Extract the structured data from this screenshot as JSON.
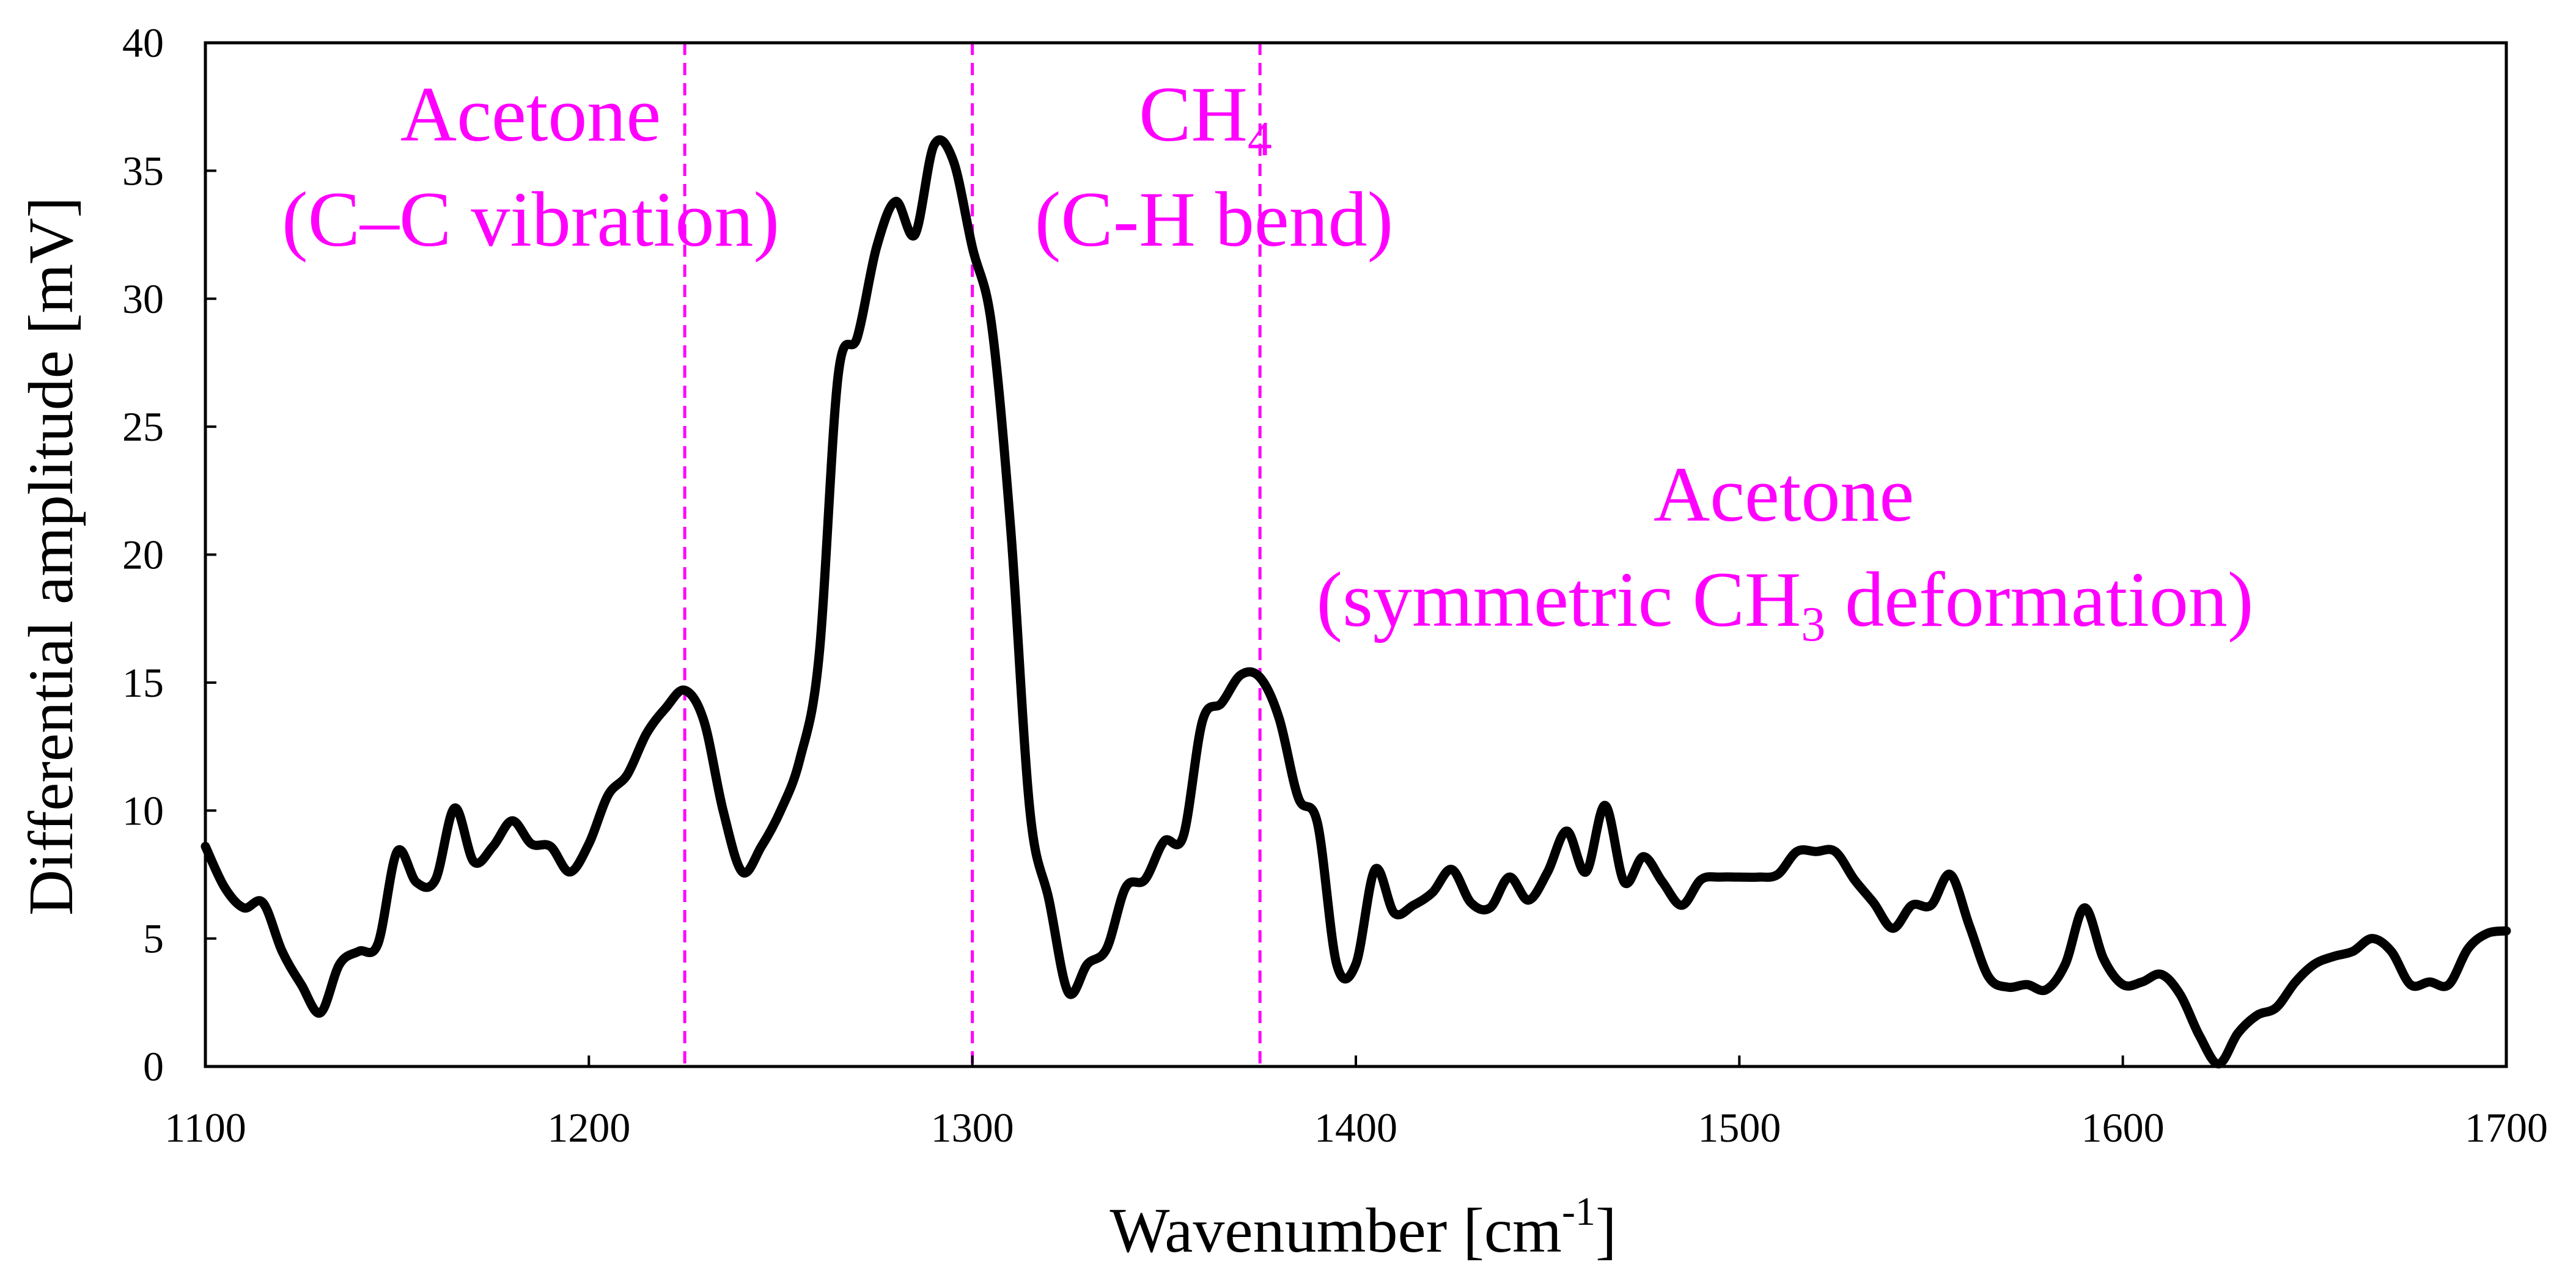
{
  "chart_data": {
    "type": "line",
    "title": "",
    "xlabel": "Wavenumber [cm",
    "xlabel_sup": "-1",
    "xlabel_end": "]",
    "ylabel": "Differential amplitude [mV]",
    "xlim": [
      1100,
      1700
    ],
    "ylim": [
      0,
      40
    ],
    "xticks": [
      1100,
      1200,
      1300,
      1400,
      1500,
      1600,
      1700
    ],
    "yticks": [
      0,
      5,
      10,
      15,
      20,
      25,
      30,
      35,
      40
    ],
    "grid": false,
    "line_color": "#000000",
    "annotation_color": "#ff00ff",
    "series": [
      {
        "name": "Differential amplitude",
        "x": [
          1100,
          1105,
          1110,
          1115,
          1120,
          1125,
          1130,
          1135,
          1140,
          1145,
          1150,
          1155,
          1160,
          1165,
          1170,
          1175,
          1180,
          1185,
          1190,
          1195,
          1200,
          1205,
          1210,
          1215,
          1220,
          1225,
          1230,
          1235,
          1240,
          1245,
          1250,
          1255,
          1260,
          1265,
          1270,
          1275,
          1280,
          1285,
          1290,
          1295,
          1300,
          1305,
          1310,
          1315,
          1320,
          1325,
          1330,
          1335,
          1340,
          1345,
          1350,
          1355,
          1360,
          1365,
          1370,
          1375,
          1380,
          1385,
          1390,
          1395,
          1400,
          1405,
          1410,
          1415,
          1420,
          1425,
          1430,
          1435,
          1440,
          1445,
          1450,
          1455,
          1460,
          1465,
          1470,
          1475,
          1480,
          1485,
          1490,
          1495,
          1500,
          1505,
          1510,
          1515,
          1520,
          1525,
          1530,
          1535,
          1540,
          1545,
          1550,
          1555,
          1560,
          1565,
          1570,
          1575,
          1580,
          1585,
          1590,
          1595,
          1600,
          1605,
          1610,
          1615,
          1620,
          1625,
          1630,
          1635,
          1640,
          1645,
          1650,
          1655,
          1660,
          1665,
          1670,
          1675,
          1680,
          1685,
          1690,
          1695,
          1700
        ],
        "values": [
          8.6,
          7.0,
          6.2,
          6.4,
          4.5,
          3.2,
          2.1,
          4.0,
          4.5,
          4.8,
          8.4,
          7.2,
          7.3,
          10.1,
          8.0,
          8.6,
          9.6,
          8.7,
          8.6,
          7.6,
          8.7,
          10.6,
          11.4,
          13.0,
          14.0,
          14.7,
          13.5,
          10.0,
          7.6,
          8.6,
          10.0,
          12.0,
          16.0,
          27.0,
          28.5,
          32.0,
          33.8,
          32.5,
          36.0,
          35.4,
          32.0,
          29.0,
          21.0,
          10.0,
          6.5,
          2.9,
          4.0,
          4.6,
          7.0,
          7.3,
          8.8,
          9.0,
          13.5,
          14.2,
          15.3,
          15.2,
          13.6,
          10.5,
          9.5,
          4.0,
          4.0,
          7.7,
          6.0,
          6.3,
          6.8,
          7.7,
          6.4,
          6.2,
          7.4,
          6.5,
          7.6,
          9.2,
          7.6,
          10.2,
          7.2,
          8.2,
          7.2,
          6.3,
          7.3,
          7.4,
          7.4,
          7.4,
          7.5,
          8.4,
          8.4,
          8.4,
          7.3,
          6.4,
          5.4,
          6.3,
          6.3,
          7.5,
          5.5,
          3.5,
          3.1,
          3.2,
          3.0,
          4.0,
          6.2,
          4.2,
          3.2,
          3.3,
          3.6,
          2.8,
          1.2,
          0.1,
          1.3,
          2.0,
          2.3,
          3.3,
          4.0,
          4.3,
          4.5,
          5.0,
          4.5,
          3.2,
          3.3,
          3.2,
          4.6,
          5.2,
          5.3
        ]
      }
    ],
    "reference_lines": [
      {
        "name": "acetone-cc",
        "x": 1225
      },
      {
        "name": "ch4-ch",
        "x": 1300
      },
      {
        "name": "acetone-ch3",
        "x": 1375
      }
    ],
    "annotations": [
      {
        "name": "acetone-cc",
        "line1": "Acetone",
        "line2": "(C–C vibration)"
      },
      {
        "name": "ch4-ch",
        "line1a": "CH",
        "line1sub": "4",
        "line2": "(C-H bend)"
      },
      {
        "name": "acetone-ch3",
        "line1": "Acetone",
        "line2a": "(symmetric CH",
        "line2sub": "3",
        "line2b": " deformation)"
      }
    ]
  }
}
